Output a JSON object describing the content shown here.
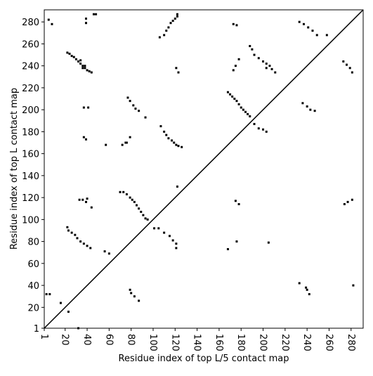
{
  "chart_data": {
    "type": "scatter",
    "xlabel": "Residue index of top L/5 contact map",
    "ylabel": "Residue index of top L contact map",
    "xlim": [
      1,
      291
    ],
    "ylim": [
      1,
      291
    ],
    "xticks": [
      1,
      20,
      40,
      60,
      80,
      100,
      120,
      140,
      160,
      180,
      200,
      220,
      240,
      260,
      280
    ],
    "yticks": [
      1,
      20,
      40,
      60,
      80,
      100,
      120,
      140,
      160,
      180,
      200,
      220,
      240,
      260,
      280
    ],
    "color": "#000000",
    "x": [
      5,
      8,
      39,
      39,
      46,
      48,
      22,
      24,
      26,
      28,
      30,
      32,
      34,
      36,
      38,
      40,
      42,
      44,
      36,
      38,
      34,
      106,
      110,
      112,
      114,
      116,
      118,
      120,
      122,
      122,
      121,
      123,
      37,
      41,
      37,
      39,
      57,
      72,
      75,
      79,
      76,
      107,
      110,
      112,
      114,
      117,
      119,
      121,
      123,
      126,
      93,
      77,
      79,
      82,
      84,
      87,
      122,
      70,
      73,
      76,
      79,
      81,
      83,
      85,
      87,
      89,
      91,
      93,
      95,
      33,
      36,
      39,
      40,
      44,
      22,
      23,
      26,
      29,
      31,
      34,
      37,
      40,
      43,
      56,
      60,
      101,
      105,
      110,
      115,
      118,
      121,
      121,
      3,
      6,
      16,
      23,
      32,
      79,
      80,
      83,
      87,
      168,
      176,
      175,
      178,
      205,
      233,
      239,
      240,
      242,
      282,
      168,
      170,
      172,
      174,
      176,
      178,
      180,
      182,
      184,
      186,
      188,
      173,
      175,
      178,
      188,
      190,
      192,
      196,
      200,
      203,
      206,
      208,
      211,
      203,
      192,
      196,
      200,
      203,
      173,
      176,
      233,
      237,
      241,
      245,
      249,
      258,
      236,
      240,
      243,
      247,
      273,
      276,
      279,
      281,
      274,
      277,
      281
    ],
    "y": [
      282,
      278,
      283,
      279,
      287,
      287,
      252,
      251,
      249,
      248,
      246,
      244,
      242,
      240,
      238,
      236,
      235,
      234,
      238,
      240,
      245,
      266,
      268,
      272,
      275,
      279,
      281,
      283,
      285,
      287,
      238,
      234,
      202,
      202,
      175,
      173,
      168,
      168,
      170,
      175,
      170,
      185,
      180,
      177,
      174,
      172,
      170,
      168,
      167,
      166,
      193,
      211,
      208,
      204,
      201,
      199,
      130,
      125,
      125,
      123,
      120,
      118,
      116,
      113,
      110,
      107,
      104,
      101,
      100,
      118,
      118,
      116,
      119,
      111,
      93,
      90,
      88,
      86,
      83,
      80,
      78,
      76,
      74,
      71,
      69,
      92,
      92,
      88,
      85,
      81,
      78,
      74,
      32,
      32,
      24,
      16,
      1,
      36,
      33,
      30,
      26,
      73,
      80,
      117,
      114,
      79,
      42,
      38,
      36,
      32,
      40,
      216,
      214,
      212,
      210,
      208,
      205,
      202,
      200,
      198,
      196,
      194,
      236,
      240,
      246,
      258,
      255,
      250,
      247,
      244,
      242,
      240,
      237,
      234,
      238,
      187,
      183,
      182,
      180,
      278,
      277,
      280,
      278,
      275,
      272,
      268,
      268,
      206,
      203,
      200,
      199,
      244,
      241,
      238,
      234,
      114,
      116,
      118
    ]
  }
}
